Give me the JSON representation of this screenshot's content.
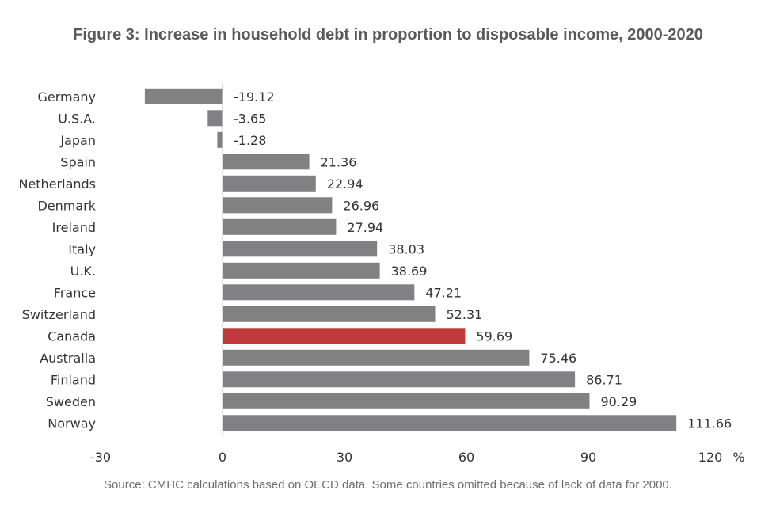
{
  "chart_data": {
    "type": "bar",
    "orientation": "horizontal",
    "title": "Figure 3: Increase in household debt in proportion to disposable income, 2000-2020",
    "source": "Source: CMHC calculations based on OECD data. Some countries omitted because of lack of data for 2000.",
    "unit": "%",
    "categories": [
      "Germany",
      "U.S.A.",
      "Japan",
      "Spain",
      "Netherlands",
      "Denmark",
      "Ireland",
      "Italy",
      "U.K.",
      "France",
      "Switzerland",
      "Canada",
      "Australia",
      "Finland",
      "Sweden",
      "Norway"
    ],
    "values": [
      -19.12,
      -3.65,
      -1.28,
      21.36,
      22.94,
      26.96,
      27.94,
      38.03,
      38.69,
      47.21,
      52.31,
      59.69,
      75.46,
      86.71,
      90.29,
      111.66
    ],
    "value_labels": [
      "-19.12",
      "-3.65",
      "-1.28",
      "21.36",
      "22.94",
      "26.96",
      "27.94",
      "38.03",
      "38.69",
      "47.21",
      "52.31",
      "59.69",
      "75.46",
      "86.71",
      "90.29",
      "111.66"
    ],
    "highlight": "Canada",
    "xlim": [
      -30,
      120
    ],
    "xticks": [
      -30,
      0,
      30,
      60,
      90,
      120
    ],
    "xtick_labels": [
      "-30",
      "0",
      "30",
      "60",
      "90",
      "120"
    ],
    "grid": false,
    "colors": {
      "bar": "#818083",
      "highlight": "#c1393a",
      "axis": "#cccccc",
      "text": "#333333"
    }
  }
}
